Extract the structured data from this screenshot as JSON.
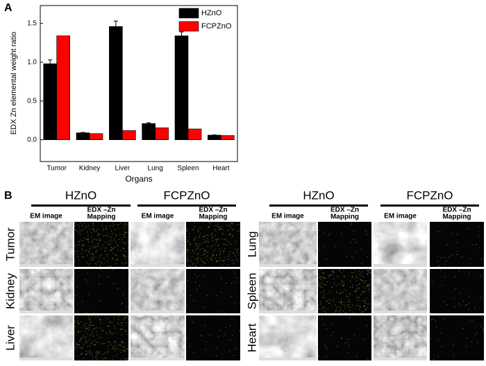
{
  "chart_data": {
    "type": "bar",
    "panel": "A",
    "ylabel": "EDX Zn elemental weight ratio",
    "xlabel": "Organs",
    "categories": [
      "Tumor",
      "Kidney",
      "Liver",
      "Lung",
      "Spleen",
      "Heart"
    ],
    "series": [
      {
        "name": "HZnO",
        "color": "#000000",
        "values": [
          0.98,
          0.09,
          1.46,
          0.21,
          1.34,
          0.06
        ],
        "errors": [
          0.05,
          0.005,
          0.07,
          0.01,
          0.05,
          0.003
        ]
      },
      {
        "name": "FCPZnO",
        "color": "#ff0000",
        "values": [
          1.34,
          0.08,
          0.12,
          0.155,
          0.14,
          0.055
        ]
      }
    ],
    "ylim": [
      -0.28,
      1.73
    ],
    "yticks": [
      {
        "value": 0,
        "label": "0.0"
      },
      0.5,
      {
        "value": 1,
        "label": "1.0"
      },
      1.5
    ],
    "legend": "upper right"
  },
  "panel_b": {
    "label": "B",
    "em_label": "EM image",
    "edx_label": [
      "EDX –Zn",
      "Mapping"
    ],
    "groups": [
      {
        "columns": [
          "HZnO",
          "FCPZnO"
        ],
        "rows": [
          "Tumor",
          "Kidney",
          "Liver"
        ]
      },
      {
        "columns": [
          "HZnO",
          "FCPZnO"
        ],
        "rows": [
          "Lung",
          "Spleen",
          "Heart"
        ]
      }
    ]
  }
}
